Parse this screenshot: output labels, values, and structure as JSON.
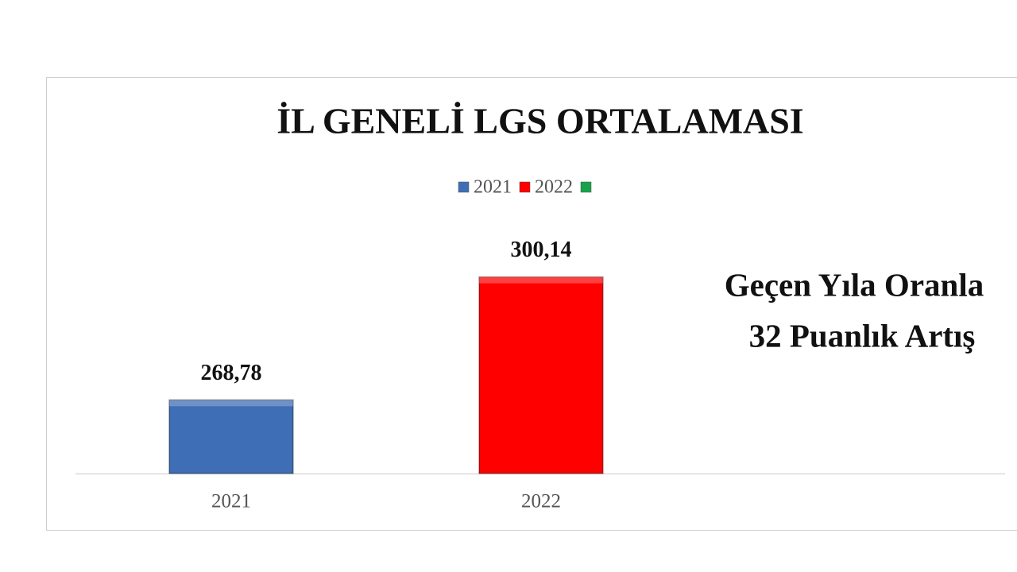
{
  "chart_data": {
    "type": "bar",
    "title": "İL GENELİ LGS ORTALAMASI",
    "categories": [
      "2021",
      "2022"
    ],
    "series": [
      {
        "name": "2021",
        "color": "#3e6eb5",
        "values": [
          268.78,
          null
        ],
        "value_labels": [
          "268,78",
          null
        ]
      },
      {
        "name": "2022",
        "color": "#ff0000",
        "values": [
          null,
          300.14
        ],
        "value_labels": [
          null,
          "300,14"
        ]
      },
      {
        "name": null,
        "color": "#17a34a",
        "values": [
          null,
          null
        ]
      }
    ],
    "ylim": [
      250,
      310
    ],
    "annotations": [
      "Geçen Yıla Oranla",
      "32 Puanlık Artış"
    ]
  }
}
